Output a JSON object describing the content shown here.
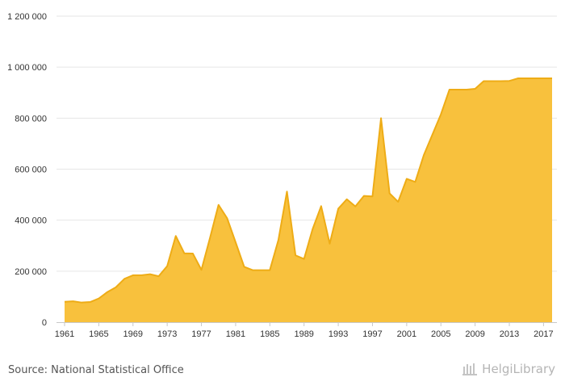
{
  "chart_data": {
    "type": "area",
    "title": "",
    "xlabel": "",
    "ylabel": "",
    "x": [
      1961,
      1962,
      1963,
      1964,
      1965,
      1966,
      1967,
      1968,
      1969,
      1970,
      1971,
      1972,
      1973,
      1974,
      1975,
      1976,
      1977,
      1978,
      1979,
      1980,
      1981,
      1982,
      1983,
      1984,
      1985,
      1986,
      1987,
      1988,
      1989,
      1990,
      1991,
      1992,
      1993,
      1994,
      1995,
      1996,
      1997,
      1998,
      1999,
      2000,
      2001,
      2002,
      2003,
      2004,
      2005,
      2006,
      2007,
      2008,
      2009,
      2010,
      2011,
      2012,
      2013,
      2014,
      2015,
      2016,
      2017,
      2018
    ],
    "series": [
      {
        "values": [
          80000,
          82000,
          77000,
          79000,
          93000,
          118000,
          137000,
          170000,
          184000,
          184000,
          188000,
          180000,
          220000,
          338000,
          270000,
          269000,
          205000,
          330000,
          460000,
          408000,
          313000,
          217000,
          204000,
          204000,
          204000,
          322000,
          512000,
          262000,
          248000,
          365000,
          455000,
          308000,
          445000,
          482000,
          454000,
          495000,
          493000,
          800000,
          505000,
          472000,
          562000,
          550000,
          655000,
          735000,
          815000,
          912000,
          912000,
          912000,
          915000,
          945000,
          945000,
          945000,
          946000,
          956000,
          956000,
          956000,
          956000,
          956000
        ]
      }
    ],
    "xticks": [
      1961,
      1965,
      1969,
      1973,
      1977,
      1981,
      1985,
      1989,
      1993,
      1997,
      2001,
      2005,
      2009,
      2013,
      2017
    ],
    "yticks": [
      0,
      200000,
      400000,
      600000,
      800000,
      1000000,
      1200000
    ],
    "ytick_labels": [
      "0",
      "200 000",
      "400 000",
      "600 000",
      "800 000",
      "1 000 000",
      "1 200 000"
    ],
    "ylim": [
      0,
      1200000
    ],
    "grid": true,
    "legend": "none",
    "colors": {
      "fill": "#F8C13D",
      "line": "#EEAC16",
      "grid": "#E6E6E6",
      "axis": "#C8C8C8"
    }
  },
  "footer": {
    "source": "Source: National Statistical Office",
    "brand": "HelgiLibrary"
  }
}
